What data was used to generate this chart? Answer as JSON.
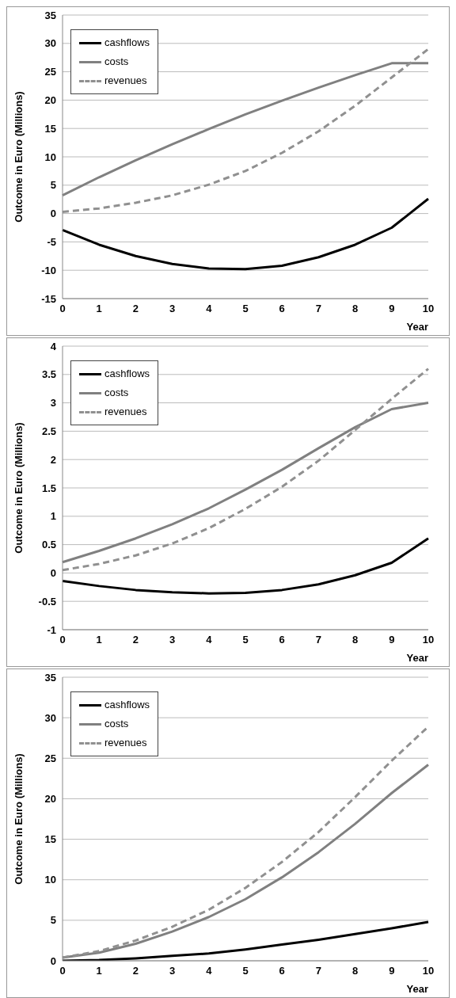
{
  "chart_data": [
    {
      "type": "line",
      "ylabel": "Outcome in Euro (Millions)",
      "xlabel": "Year",
      "categories": [
        "0",
        "1",
        "2",
        "3",
        "4",
        "5",
        "6",
        "7",
        "8",
        "9",
        "10"
      ],
      "ylim": [
        -15,
        35
      ],
      "yticks": [
        -15,
        -10,
        -5,
        0,
        5,
        10,
        15,
        20,
        25,
        30,
        35
      ],
      "grid": "y",
      "legend": "top left",
      "marker": "none",
      "series": [
        {
          "name": "cashflows",
          "color": "#000000",
          "line_style": "solid",
          "values": [
            -2.9,
            -5.5,
            -7.5,
            -8.9,
            -9.7,
            -9.8,
            -9.2,
            -7.7,
            -5.5,
            -2.5,
            2.6
          ]
        },
        {
          "name": "costs",
          "color": "#808080",
          "line_style": "solid",
          "values": [
            3.2,
            6.4,
            9.4,
            12.2,
            14.9,
            17.5,
            19.9,
            22.2,
            24.4,
            26.5,
            26.5
          ]
        },
        {
          "name": "revenues",
          "color": "#909090",
          "line_style": "dashed",
          "values": [
            0.3,
            0.9,
            1.9,
            3.2,
            5.1,
            7.5,
            10.7,
            14.5,
            19.0,
            24.0,
            29.0
          ]
        }
      ]
    },
    {
      "type": "line",
      "ylabel": "Outcome in Euro (Millions)",
      "xlabel": "Year",
      "categories": [
        "0",
        "1",
        "2",
        "3",
        "4",
        "5",
        "6",
        "7",
        "8",
        "9",
        "10"
      ],
      "ylim": [
        -1,
        4
      ],
      "yticks": [
        -1,
        -0.5,
        0,
        0.5,
        1,
        1.5,
        2,
        2.5,
        3,
        3.5,
        4
      ],
      "grid": "y",
      "legend": "top left",
      "marker": "none",
      "series": [
        {
          "name": "cashflows",
          "color": "#000000",
          "line_style": "solid",
          "values": [
            -0.14,
            -0.23,
            -0.3,
            -0.34,
            -0.36,
            -0.35,
            -0.3,
            -0.2,
            -0.04,
            0.18,
            0.61
          ]
        },
        {
          "name": "costs",
          "color": "#808080",
          "line_style": "solid",
          "values": [
            0.19,
            0.39,
            0.61,
            0.86,
            1.14,
            1.47,
            1.82,
            2.2,
            2.57,
            2.89,
            3.0
          ]
        },
        {
          "name": "revenues",
          "color": "#909090",
          "line_style": "dashed",
          "values": [
            0.05,
            0.16,
            0.31,
            0.52,
            0.79,
            1.13,
            1.52,
            1.98,
            2.52,
            3.07,
            3.6
          ]
        }
      ]
    },
    {
      "type": "line",
      "ylabel": "Outcome in Euro (Millions)",
      "xlabel": "Year",
      "categories": [
        "0",
        "1",
        "2",
        "3",
        "4",
        "5",
        "6",
        "7",
        "8",
        "9",
        "10"
      ],
      "ylim": [
        0,
        35
      ],
      "yticks": [
        0,
        5,
        10,
        15,
        20,
        25,
        30,
        35
      ],
      "grid": "y",
      "legend": "top left",
      "marker": "none",
      "series": [
        {
          "name": "cashflows",
          "color": "#000000",
          "line_style": "solid",
          "values": [
            0,
            0.1,
            0.3,
            0.6,
            0.9,
            1.4,
            2.0,
            2.6,
            3.3,
            4.0,
            4.8
          ]
        },
        {
          "name": "costs",
          "color": "#808080",
          "line_style": "solid",
          "values": [
            0.4,
            1.0,
            2.1,
            3.6,
            5.4,
            7.6,
            10.3,
            13.4,
            16.9,
            20.7,
            24.2
          ]
        },
        {
          "name": "revenues",
          "color": "#909090",
          "line_style": "dashed",
          "values": [
            0.4,
            1.2,
            2.5,
            4.2,
            6.3,
            9.0,
            12.2,
            15.9,
            20.2,
            24.7,
            28.9
          ]
        }
      ]
    }
  ]
}
